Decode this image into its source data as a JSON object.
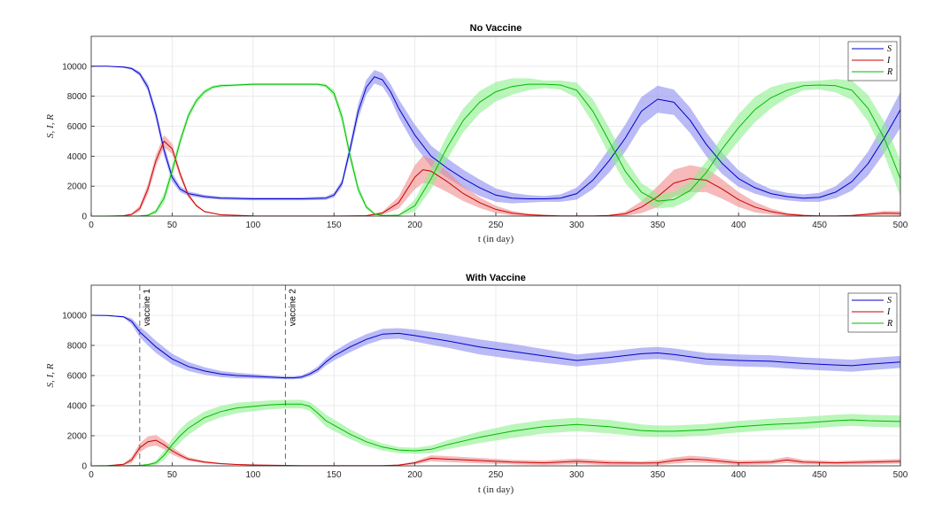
{
  "chart_data": [
    {
      "type": "line",
      "title": "No Vaccine",
      "xlabel": "t (in day)",
      "ylabel": "S, I, R",
      "xlim": [
        0,
        500
      ],
      "ylim": [
        0,
        12000
      ],
      "xticks": [
        0,
        50,
        100,
        150,
        200,
        250,
        300,
        350,
        400,
        450,
        500
      ],
      "yticks": [
        0,
        2000,
        4000,
        6000,
        8000,
        10000
      ],
      "grid": true,
      "legend": "top-right",
      "series": [
        {
          "name": "S",
          "color": "#0000cc",
          "band_color": "#8c8cf0",
          "x": [
            0,
            10,
            20,
            25,
            30,
            35,
            40,
            45,
            50,
            55,
            60,
            70,
            80,
            100,
            130,
            145,
            150,
            155,
            160,
            165,
            170,
            175,
            180,
            185,
            190,
            200,
            210,
            220,
            230,
            240,
            250,
            260,
            270,
            280,
            290,
            300,
            310,
            320,
            330,
            340,
            350,
            360,
            370,
            380,
            390,
            400,
            410,
            420,
            430,
            440,
            450,
            460,
            470,
            480,
            490,
            500
          ],
          "y": [
            10000,
            10000,
            9950,
            9850,
            9500,
            8600,
            6800,
            4400,
            2600,
            1800,
            1500,
            1300,
            1200,
            1150,
            1150,
            1200,
            1400,
            2200,
            4500,
            7000,
            8600,
            9300,
            9100,
            8300,
            7200,
            5400,
            4000,
            3200,
            2500,
            1900,
            1400,
            1200,
            1150,
            1150,
            1200,
            1500,
            2400,
            3700,
            5200,
            7000,
            7800,
            7600,
            6400,
            4800,
            3500,
            2500,
            1900,
            1500,
            1300,
            1200,
            1250,
            1600,
            2300,
            3500,
            5200,
            7100
          ],
          "band": [
            0,
            0,
            50,
            80,
            150,
            250,
            350,
            400,
            300,
            200,
            150,
            120,
            100,
            100,
            100,
            120,
            150,
            250,
            400,
            500,
            500,
            450,
            450,
            500,
            600,
            700,
            700,
            650,
            600,
            550,
            450,
            350,
            250,
            200,
            250,
            400,
            600,
            800,
            900,
            950,
            900,
            850,
            850,
            800,
            700,
            550,
            400,
            300,
            250,
            250,
            300,
            400,
            600,
            800,
            1000,
            1200
          ]
        },
        {
          "name": "I",
          "color": "#cc0000",
          "band_color": "#f08c8c",
          "x": [
            0,
            10,
            20,
            25,
            30,
            35,
            40,
            45,
            50,
            55,
            60,
            65,
            70,
            80,
            100,
            130,
            150,
            160,
            170,
            180,
            190,
            200,
            205,
            210,
            220,
            230,
            240,
            250,
            260,
            270,
            280,
            290,
            300,
            310,
            320,
            330,
            340,
            350,
            360,
            370,
            380,
            390,
            400,
            410,
            420,
            430,
            440,
            450,
            460,
            470,
            480,
            490,
            500
          ],
          "y": [
            0,
            0,
            30,
            120,
            500,
            1800,
            3700,
            5000,
            4500,
            2800,
            1400,
            700,
            300,
            90,
            20,
            5,
            5,
            10,
            30,
            200,
            900,
            2600,
            3100,
            3000,
            2300,
            1500,
            900,
            450,
            200,
            90,
            40,
            20,
            10,
            15,
            40,
            150,
            600,
            1300,
            2200,
            2500,
            2400,
            1800,
            1100,
            600,
            300,
            120,
            50,
            20,
            10,
            40,
            120,
            200,
            180
          ],
          "band": [
            0,
            0,
            20,
            60,
            200,
            350,
            400,
            400,
            350,
            250,
            150,
            80,
            50,
            20,
            5,
            3,
            3,
            5,
            20,
            100,
            400,
            800,
            900,
            850,
            700,
            500,
            350,
            250,
            150,
            80,
            40,
            20,
            10,
            10,
            30,
            150,
            400,
            700,
            900,
            900,
            800,
            650,
            500,
            350,
            200,
            100,
            50,
            20,
            10,
            30,
            100,
            150,
            150
          ]
        },
        {
          "name": "R",
          "color": "#00bb00",
          "band_color": "#8cf08c",
          "x": [
            0,
            20,
            30,
            35,
            40,
            45,
            50,
            55,
            60,
            65,
            70,
            75,
            80,
            90,
            100,
            120,
            140,
            145,
            150,
            155,
            160,
            165,
            170,
            175,
            180,
            185,
            190,
            200,
            210,
            220,
            230,
            240,
            250,
            260,
            270,
            280,
            290,
            300,
            310,
            320,
            330,
            340,
            350,
            360,
            370,
            380,
            390,
            400,
            410,
            420,
            430,
            440,
            450,
            460,
            470,
            480,
            490,
            500
          ],
          "y": [
            0,
            5,
            20,
            60,
            300,
            1200,
            3000,
            5000,
            6700,
            7700,
            8300,
            8600,
            8700,
            8750,
            8800,
            8800,
            8800,
            8700,
            8200,
            6600,
            4000,
            1800,
            600,
            150,
            50,
            40,
            60,
            700,
            2500,
            4600,
            6400,
            7600,
            8300,
            8650,
            8800,
            8800,
            8750,
            8400,
            7000,
            5000,
            3000,
            1600,
            1000,
            1100,
            1700,
            2900,
            4500,
            5900,
            7100,
            7900,
            8400,
            8700,
            8750,
            8700,
            8400,
            7200,
            5200,
            2500
          ],
          "band": [
            0,
            5,
            15,
            40,
            150,
            350,
            400,
            350,
            250,
            200,
            150,
            120,
            100,
            80,
            80,
            80,
            80,
            120,
            250,
            400,
            400,
            300,
            150,
            80,
            30,
            30,
            60,
            400,
            700,
            800,
            800,
            750,
            650,
            550,
            400,
            250,
            300,
            500,
            800,
            900,
            800,
            600,
            500,
            500,
            600,
            750,
            850,
            900,
            850,
            700,
            500,
            300,
            300,
            450,
            650,
            900,
            1100,
            1200
          ]
        }
      ]
    },
    {
      "type": "line",
      "title": "With Vaccine",
      "xlabel": "t (in day)",
      "ylabel": "S, I, R",
      "xlim": [
        0,
        500
      ],
      "ylim": [
        0,
        12000
      ],
      "xticks": [
        0,
        50,
        100,
        150,
        200,
        250,
        300,
        350,
        400,
        450,
        500
      ],
      "yticks": [
        0,
        2000,
        4000,
        6000,
        8000,
        10000
      ],
      "grid": true,
      "legend": "top-right",
      "annotations": [
        {
          "x": 30,
          "label": "vaccine 1"
        },
        {
          "x": 120,
          "label": "vaccine 2"
        }
      ],
      "series": [
        {
          "name": "S",
          "color": "#0000cc",
          "band_color": "#8c8cf0",
          "x": [
            0,
            10,
            20,
            25,
            30,
            35,
            40,
            50,
            60,
            70,
            80,
            90,
            100,
            110,
            120,
            125,
            130,
            135,
            140,
            145,
            150,
            160,
            170,
            180,
            190,
            200,
            220,
            240,
            260,
            280,
            300,
            320,
            340,
            350,
            360,
            380,
            400,
            420,
            440,
            460,
            470,
            480,
            500
          ],
          "y": [
            10000,
            9980,
            9900,
            9600,
            8900,
            8400,
            7900,
            7100,
            6600,
            6300,
            6100,
            6000,
            5950,
            5900,
            5850,
            5850,
            5900,
            6100,
            6400,
            6900,
            7300,
            7900,
            8400,
            8750,
            8800,
            8650,
            8300,
            7900,
            7600,
            7300,
            7000,
            7200,
            7450,
            7500,
            7400,
            7100,
            7000,
            6950,
            6800,
            6700,
            6650,
            6750,
            6900
          ],
          "band": [
            0,
            10,
            50,
            200,
            350,
            400,
            400,
            350,
            300,
            250,
            200,
            180,
            150,
            120,
            100,
            100,
            120,
            150,
            200,
            250,
            300,
            350,
            350,
            350,
            350,
            400,
            450,
            500,
            500,
            450,
            400,
            400,
            400,
            400,
            400,
            400,
            400,
            400,
            400,
            400,
            400,
            400,
            400
          ]
        },
        {
          "name": "I",
          "color": "#cc0000",
          "band_color": "#f08c8c",
          "x": [
            0,
            10,
            20,
            25,
            30,
            35,
            40,
            45,
            50,
            55,
            60,
            70,
            80,
            90,
            100,
            110,
            120,
            130,
            140,
            150,
            160,
            170,
            180,
            190,
            200,
            210,
            220,
            240,
            260,
            280,
            300,
            320,
            340,
            350,
            360,
            370,
            380,
            400,
            420,
            430,
            440,
            460,
            480,
            500
          ],
          "y": [
            0,
            10,
            100,
            400,
            1200,
            1600,
            1700,
            1400,
            1000,
            700,
            450,
            250,
            150,
            90,
            60,
            40,
            30,
            20,
            15,
            10,
            10,
            15,
            20,
            50,
            200,
            500,
            450,
            350,
            250,
            200,
            300,
            200,
            180,
            200,
            350,
            450,
            400,
            200,
            250,
            400,
            250,
            200,
            250,
            300
          ],
          "band": [
            0,
            5,
            50,
            200,
            300,
            350,
            350,
            300,
            250,
            180,
            120,
            80,
            50,
            30,
            20,
            15,
            10,
            10,
            8,
            8,
            8,
            10,
            15,
            30,
            100,
            200,
            200,
            180,
            150,
            150,
            180,
            150,
            120,
            150,
            200,
            220,
            200,
            150,
            150,
            200,
            150,
            120,
            150,
            150
          ]
        },
        {
          "name": "R",
          "color": "#00bb00",
          "band_color": "#8cf08c",
          "x": [
            0,
            20,
            30,
            35,
            40,
            45,
            50,
            55,
            60,
            70,
            80,
            90,
            100,
            110,
            120,
            130,
            135,
            140,
            145,
            150,
            160,
            170,
            180,
            190,
            200,
            210,
            220,
            240,
            260,
            280,
            300,
            320,
            340,
            350,
            360,
            380,
            400,
            420,
            440,
            460,
            470,
            480,
            500
          ],
          "y": [
            0,
            5,
            30,
            80,
            200,
            700,
            1400,
            2000,
            2500,
            3200,
            3600,
            3850,
            3950,
            4050,
            4100,
            4100,
            3950,
            3500,
            3000,
            2700,
            2100,
            1600,
            1250,
            1050,
            1000,
            1100,
            1400,
            1900,
            2300,
            2600,
            2750,
            2600,
            2350,
            2300,
            2300,
            2400,
            2600,
            2750,
            2850,
            3000,
            3050,
            3000,
            2950
          ],
          "band": [
            0,
            5,
            20,
            60,
            150,
            300,
            400,
            450,
            450,
            400,
            380,
            350,
            320,
            300,
            280,
            280,
            300,
            350,
            400,
            380,
            330,
            280,
            230,
            200,
            200,
            250,
            300,
            380,
            450,
            450,
            450,
            450,
            400,
            380,
            380,
            380,
            380,
            380,
            400,
            400,
            400,
            400,
            400
          ]
        }
      ]
    }
  ]
}
